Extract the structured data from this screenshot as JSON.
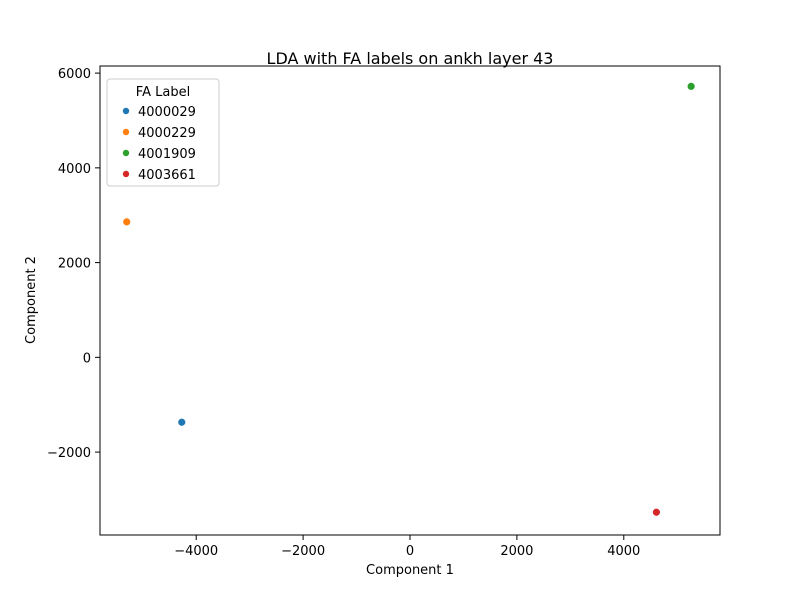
{
  "chart_data": {
    "type": "scatter",
    "title": "LDA with FA labels on ankh layer 43",
    "xlabel": "Component 1",
    "ylabel": "Component 2",
    "xlim": [
      -5800,
      5800
    ],
    "ylim": [
      -3750,
      6150
    ],
    "xticks": [
      -4000,
      -2000,
      0,
      2000,
      4000
    ],
    "yticks": [
      -2000,
      0,
      2000,
      4000,
      6000
    ],
    "xtick_labels": [
      "−4000",
      "−2000",
      "0",
      "2000",
      "4000"
    ],
    "ytick_labels": [
      "−2000",
      "0",
      "2000",
      "4000",
      "6000"
    ],
    "grid": false,
    "legend": {
      "title": "FA Label",
      "placement": "top-left"
    },
    "series": [
      {
        "name": "4000029",
        "color": "#1f77b4",
        "points": [
          {
            "x": -4270,
            "y": -1370
          }
        ]
      },
      {
        "name": "4000229",
        "color": "#ff7f0e",
        "points": [
          {
            "x": -5300,
            "y": 2860
          }
        ]
      },
      {
        "name": "4001909",
        "color": "#2ca02c",
        "points": [
          {
            "x": 5260,
            "y": 5720
          }
        ]
      },
      {
        "name": "4003661",
        "color": "#d62728",
        "points": [
          {
            "x": 4610,
            "y": -3270
          }
        ]
      }
    ]
  }
}
